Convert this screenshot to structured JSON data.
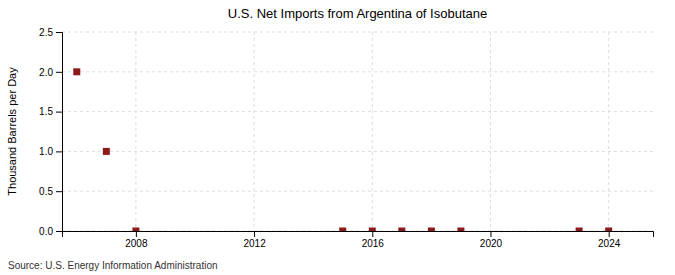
{
  "chart_data": {
    "type": "scatter",
    "title": "U.S. Net Imports from Argentina of Isobutane",
    "ylabel": "Thousand Barrels per Day",
    "annotations": [
      "Source: U.S. Energy Information Administration"
    ],
    "x": [
      2006,
      2007,
      2008,
      2015,
      2016,
      2017,
      2018,
      2019,
      2023,
      2024
    ],
    "values": [
      2.0,
      1.0,
      0.0,
      0.0,
      0.0,
      0.0,
      0.0,
      0.0,
      0.0,
      0.0
    ],
    "color": "#8b1a1a",
    "marker": "square",
    "xlim": [
      2005.5,
      2025.5
    ],
    "xticks": [
      2008,
      2012,
      2016,
      2020,
      2024
    ],
    "ylim": [
      0.0,
      2.5
    ],
    "yticks": [
      {
        "value": 0.0,
        "label": "0.0"
      },
      0.5,
      {
        "value": 1.0,
        "label": "1.0"
      },
      1.5,
      {
        "value": 2.0,
        "label": "2.0"
      },
      2.5
    ],
    "grid": true
  }
}
